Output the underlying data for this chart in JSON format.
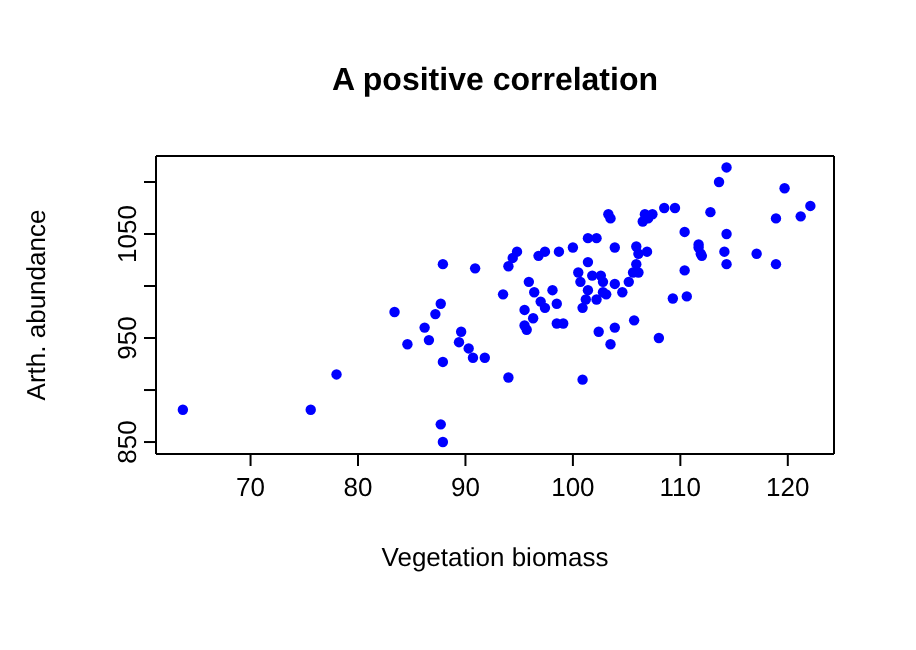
{
  "chart_data": {
    "type": "scatter",
    "title": "A positive correlation",
    "xlabel": "Vegetation biomass",
    "ylabel": "Arth. abundance",
    "xlim": [
      61.2,
      124.3
    ],
    "ylim": [
      838.5,
      1125
    ],
    "xticks": [
      70,
      80,
      90,
      100,
      110,
      120
    ],
    "yticks": [
      850,
      {
        "value": 900,
        "label": null
      },
      950,
      {
        "value": 1000,
        "label": null
      },
      1050,
      {
        "value": 1100,
        "label": null
      }
    ],
    "marker": "circle",
    "series": [
      {
        "color": "#0000ff",
        "x": [
          63.7,
          75.6,
          78.0,
          87.7,
          87.9,
          83.4,
          84.6,
          86.2,
          86.6,
          87.2,
          87.7,
          87.9,
          87.9,
          89.6,
          89.4,
          90.3,
          90.7,
          91.8,
          90.9,
          93.5,
          94.0,
          94.0,
          94.4,
          94.8,
          95.9,
          95.5,
          95.5,
          95.7,
          96.3,
          96.4,
          97.0,
          97.4,
          96.8,
          97.4,
          98.1,
          98.5,
          98.5,
          99.1,
          98.7,
          100.0,
          100.5,
          100.7,
          100.9,
          100.9,
          101.2,
          101.4,
          101.4,
          101.4,
          102.2,
          101.8,
          102.2,
          102.4,
          102.6,
          102.8,
          102.8,
          103.1,
          103.3,
          103.5,
          103.9,
          103.9,
          103.9,
          103.5,
          104.6,
          105.2,
          105.6,
          105.9,
          106.1,
          105.9,
          106.1,
          106.9,
          105.7,
          108.0,
          106.5,
          106.7,
          107.0,
          107.4,
          108.5,
          109.5,
          110.4,
          109.3,
          110.6,
          110.4,
          111.7,
          111.7,
          111.9,
          112.0,
          112.8,
          113.6,
          114.3,
          114.3,
          114.1,
          114.3,
          117.1,
          118.9,
          118.9,
          119.7,
          121.2,
          122.1
        ],
        "values": [
          881,
          881,
          915,
          867,
          850,
          975,
          944,
          960,
          948,
          973,
          983,
          1021,
          927,
          956,
          946,
          940,
          931,
          931,
          1017,
          992,
          912,
          1019,
          1027,
          1033,
          1004,
          977,
          962,
          958,
          969,
          994,
          985,
          979,
          1029,
          1033,
          996,
          983,
          964,
          964,
          1033,
          1037,
          1013,
          1004,
          910,
          979,
          987,
          996,
          1023,
          1046,
          1046,
          1010,
          987,
          956,
          1010,
          994,
          1004,
          992,
          1069,
          1065,
          1037,
          1002,
          960,
          944,
          994,
          1004,
          1013,
          1021,
          1013,
          1038,
          1031,
          1033,
          967,
          950,
          1062,
          1069,
          1065,
          1069,
          1075,
          1075,
          1052,
          988,
          990,
          1015,
          1040,
          1037,
          1031,
          1029,
          1071,
          1100,
          1114,
          1050,
          1033,
          1021,
          1031,
          1065,
          1021,
          1094,
          1067,
          1077
        ]
      }
    ]
  }
}
